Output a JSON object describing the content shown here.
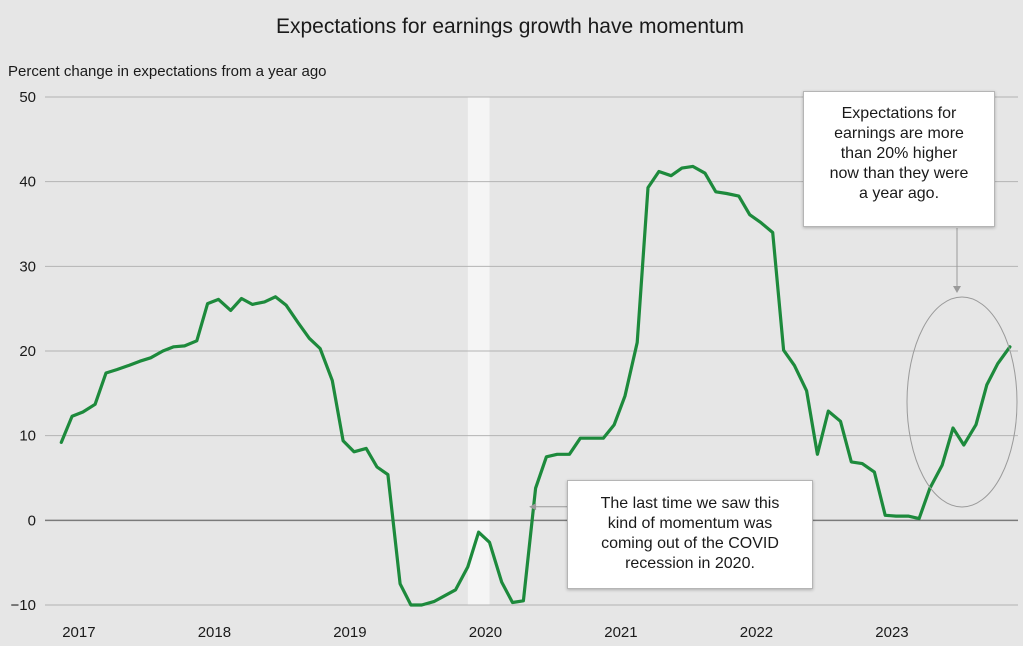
{
  "chart_data": {
    "type": "line",
    "title": "Expectations for earnings growth have momentum",
    "ylabel": "Percent change in expectations from a year ago",
    "xlabel": "",
    "ylim": [
      -10,
      50
    ],
    "yticks": [
      50,
      40,
      30,
      20,
      10,
      0,
      -10
    ],
    "xticks": [
      "2017",
      "2018",
      "2019",
      "2020",
      "2021",
      "2022",
      "2023"
    ],
    "xlim": [
      2016.8,
      2023.98
    ],
    "grid": true,
    "line_color": "#1d8a3c",
    "recession_shading": {
      "start": 2019.92,
      "end": 2020.08,
      "color": "#f5f5f5"
    },
    "series": [
      {
        "points": [
          [
            2016.92,
            9.2
          ],
          [
            2017.0,
            12.3
          ],
          [
            2017.08,
            12.8
          ],
          [
            2017.17,
            13.7
          ],
          [
            2017.25,
            17.4
          ],
          [
            2017.33,
            17.8
          ],
          [
            2017.42,
            18.3
          ],
          [
            2017.5,
            18.8
          ],
          [
            2017.58,
            19.2
          ],
          [
            2017.67,
            20.0
          ],
          [
            2017.75,
            20.5
          ],
          [
            2017.83,
            20.6
          ],
          [
            2017.92,
            21.2
          ],
          [
            2018.0,
            25.6
          ],
          [
            2018.08,
            26.1
          ],
          [
            2018.17,
            24.8
          ],
          [
            2018.25,
            26.2
          ],
          [
            2018.33,
            25.5
          ],
          [
            2018.42,
            25.8
          ],
          [
            2018.5,
            26.4
          ],
          [
            2018.58,
            25.4
          ],
          [
            2018.67,
            23.3
          ],
          [
            2018.75,
            21.5
          ],
          [
            2018.83,
            20.3
          ],
          [
            2018.92,
            16.5
          ],
          [
            2019.0,
            9.4
          ],
          [
            2019.08,
            8.1
          ],
          [
            2019.17,
            8.5
          ],
          [
            2019.25,
            6.3
          ],
          [
            2019.33,
            5.4
          ],
          [
            2019.42,
            -7.5
          ],
          [
            2019.5,
            -10.0
          ],
          [
            2019.58,
            -10.0
          ],
          [
            2019.67,
            -9.6
          ],
          [
            2019.75,
            -8.9
          ],
          [
            2019.83,
            -8.2
          ],
          [
            2019.92,
            -5.5
          ],
          [
            2020.0,
            -1.4
          ],
          [
            2020.08,
            -2.6
          ],
          [
            2020.17,
            -7.3
          ],
          [
            2020.25,
            -9.7
          ],
          [
            2020.33,
            -9.5
          ],
          [
            2020.42,
            3.8
          ],
          [
            2020.5,
            7.5
          ],
          [
            2020.58,
            7.8
          ],
          [
            2020.67,
            7.8
          ],
          [
            2020.75,
            9.7
          ],
          [
            2020.83,
            9.7
          ],
          [
            2020.92,
            9.7
          ],
          [
            2021.0,
            11.3
          ],
          [
            2021.08,
            14.7
          ],
          [
            2021.17,
            21.0
          ],
          [
            2021.25,
            39.3
          ],
          [
            2021.33,
            41.2
          ],
          [
            2021.42,
            40.7
          ],
          [
            2021.5,
            41.6
          ],
          [
            2021.58,
            41.8
          ],
          [
            2021.67,
            41.0
          ],
          [
            2021.75,
            38.8
          ],
          [
            2021.83,
            38.6
          ],
          [
            2021.92,
            38.3
          ],
          [
            2022.0,
            36.1
          ],
          [
            2022.08,
            35.2
          ],
          [
            2022.17,
            34.0
          ],
          [
            2022.25,
            20.1
          ],
          [
            2022.33,
            18.3
          ],
          [
            2022.42,
            15.3
          ],
          [
            2022.5,
            7.8
          ],
          [
            2022.58,
            12.9
          ],
          [
            2022.67,
            11.7
          ],
          [
            2022.75,
            6.9
          ],
          [
            2022.83,
            6.7
          ],
          [
            2022.92,
            5.7
          ],
          [
            2023.0,
            0.6
          ],
          [
            2023.08,
            0.5
          ],
          [
            2023.17,
            0.5
          ],
          [
            2023.25,
            0.2
          ],
          [
            2023.33,
            3.8
          ],
          [
            2023.42,
            6.5
          ],
          [
            2023.5,
            10.9
          ],
          [
            2023.58,
            8.9
          ],
          [
            2023.67,
            11.3
          ],
          [
            2023.75,
            16.0
          ],
          [
            2023.83,
            18.5
          ],
          [
            2023.92,
            20.5
          ]
        ]
      }
    ],
    "annotations": [
      {
        "lines": [
          "Expectations for",
          "earnings are more",
          "than 20% higher",
          "now than they were",
          "a year ago."
        ],
        "target": [
          2023.7,
          26.5
        ]
      },
      {
        "lines": [
          "The last time we saw this",
          "kind of momentum was",
          "coming out of the COVID",
          "recession in 2020."
        ],
        "target": [
          2020.35,
          1.6
        ]
      }
    ]
  }
}
